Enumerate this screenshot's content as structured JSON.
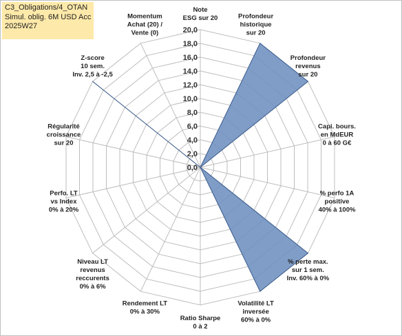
{
  "title_lines": [
    "C3_Obligations/4_OTAN",
    "Simul. oblig. 6M USD Acc",
    "2025W27"
  ],
  "chart_data": {
    "type": "radar",
    "rmin": 0,
    "rmax": 20,
    "tick_step": 2,
    "tick_labels": [
      "0,0",
      "2,0",
      "4,0",
      "6,0",
      "8,0",
      "10,0",
      "12,0",
      "14,0",
      "16,0",
      "18,0",
      "20,0"
    ],
    "fill_color": "#6d8fbe",
    "stroke_color": "#3c5d8f",
    "grid_color": "#bdbdbd",
    "axes": [
      {
        "label": [
          "Note",
          "ESG sur 20"
        ],
        "value": 0
      },
      {
        "label": [
          "Profondeur",
          "historique",
          "sur 20"
        ],
        "value": 20
      },
      {
        "label": [
          "Profondeur",
          "revenus",
          "sur 20"
        ],
        "value": 20
      },
      {
        "label": [
          "Capi. bours.",
          "en MdEUR",
          "0 à 60 G€"
        ],
        "value": 0
      },
      {
        "label": [
          "% perfo 1A",
          "positive",
          "40% à 100%"
        ],
        "value": 0
      },
      {
        "label": [
          "% perte max.",
          "sur 1 sem.",
          "Inv. 60% à 0%"
        ],
        "value": 20
      },
      {
        "label": [
          "Volatilité LT",
          "inversée",
          "60% à 0%"
        ],
        "value": 20
      },
      {
        "label": [
          "Ratio Sharpe",
          "0 à 2"
        ],
        "value": 0
      },
      {
        "label": [
          "Rendement LT",
          "0% à 30%"
        ],
        "value": 0
      },
      {
        "label": [
          "Niveau LT",
          "revenus",
          "reccurents",
          "0% à 6%"
        ],
        "value": 0
      },
      {
        "label": [
          "Perfo. LT",
          "vs Index",
          "0% à 20%"
        ],
        "value": 0
      },
      {
        "label": [
          "Régularité",
          "croissance",
          "sur 20"
        ],
        "value": 0
      },
      {
        "label": [
          "Z-score",
          "10 sem.",
          "Inv. 2,5 à -2,5"
        ],
        "value": 20
      },
      {
        "label": [
          "Momentum",
          "Achat (20) /",
          "Vente (0)"
        ],
        "value": 0
      }
    ]
  }
}
